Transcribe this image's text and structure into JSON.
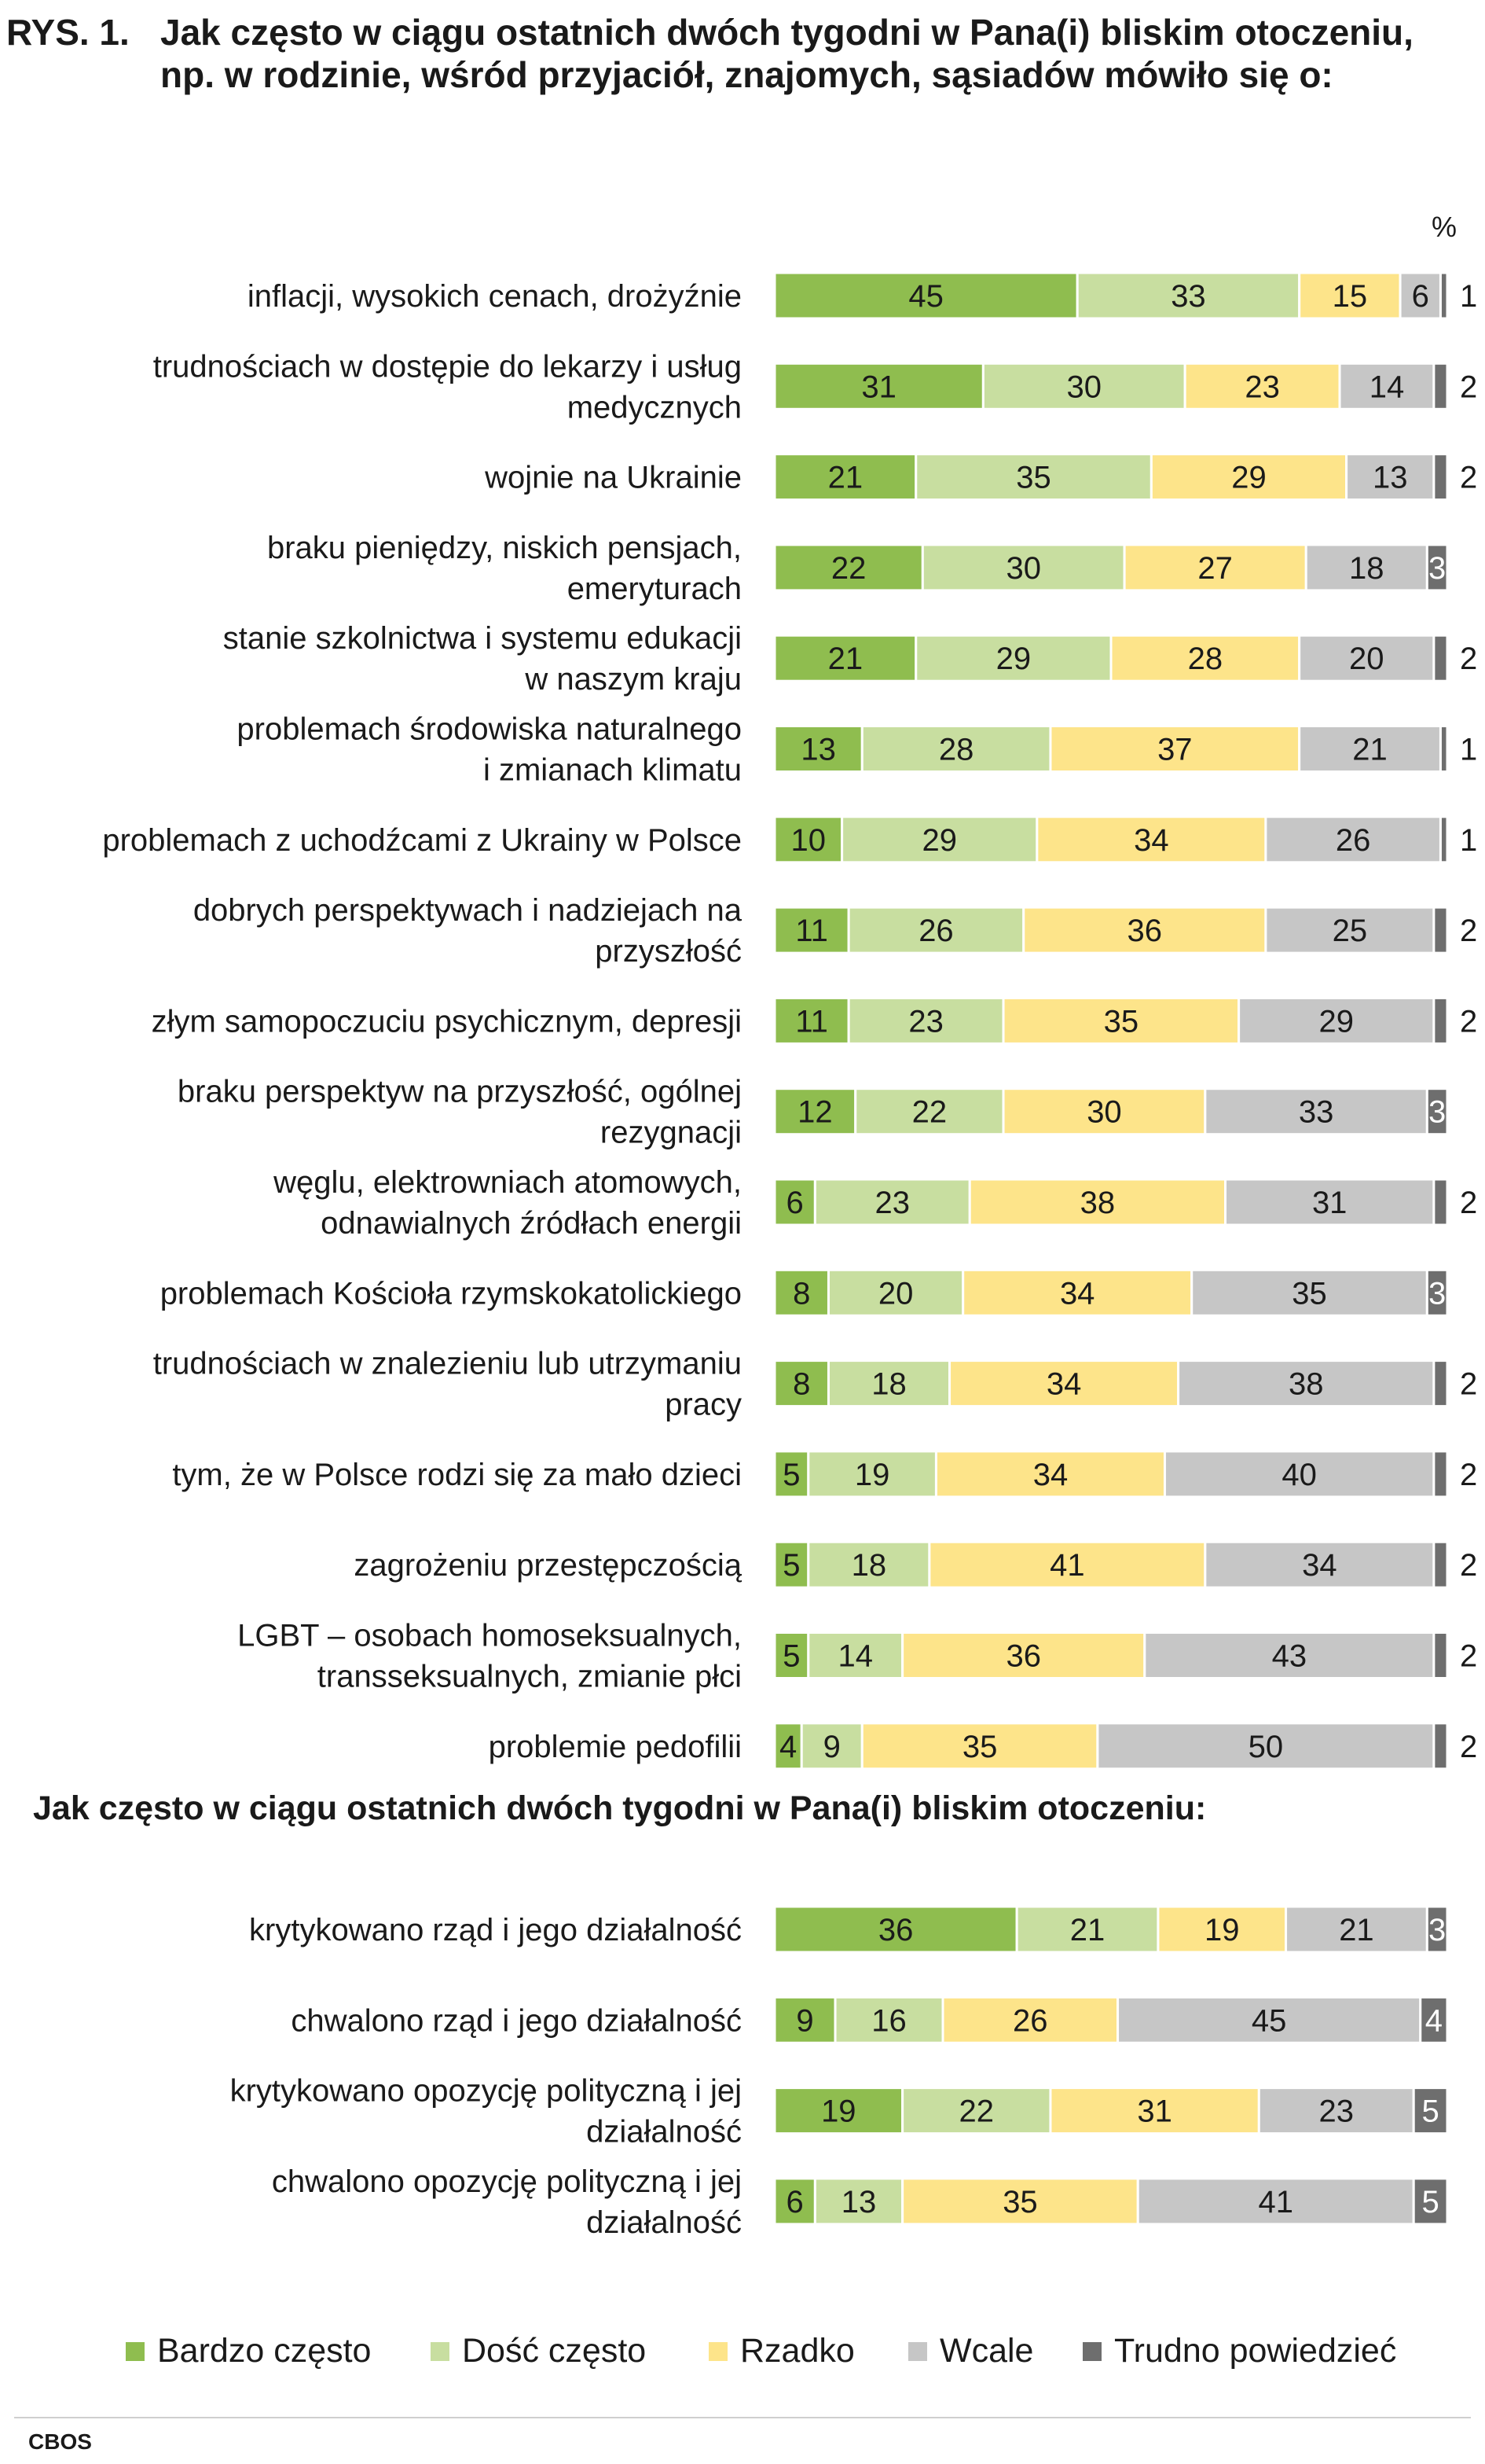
{
  "figure_label": "RYS. 1.",
  "title": "Jak często w ciągu ostatnich dwóch tygodni w Pana(i) bliskim otoczeniu, np. w rodzinie, wśród przyjaciół, znajomych, sąsiadów mówiło się o:",
  "subtitle": "Jak często w ciągu ostatnich dwóch tygodni w Pana(i) bliskim otoczeniu:",
  "unit": "%",
  "source": "CBOS",
  "colors": {
    "bardzo_czesto": "#8fbd4f",
    "dosc_czesto": "#c8dea0",
    "rzadko": "#fde48a",
    "wcale": "#c6c6c6",
    "trudno_powiedziec": "#6e6e6e"
  },
  "chart_data": [
    {
      "type": "bar",
      "orientation": "horizontal",
      "stacked": true,
      "categories": [
        "inflacji, wysokich cenach, drożyźnie",
        "trudnościach w dostępie do lekarzy i usług medycznych",
        "wojnie na Ukrainie",
        "braku pieniędzy, niskich pensjach, emeryturach",
        "stanie szkolnictwa i systemu edukacji w naszym kraju",
        "problemach środowiska naturalnego i zmianach klimatu",
        "problemach z uchodźcami z Ukrainy w Polsce",
        "dobrych perspektywach i nadziejach na przyszłość",
        "złym samopoczuciu psychicznym, depresji",
        "braku perspektyw na przyszłość, ogólnej rezygnacji",
        "węglu, elektrowniach atomowych, odnawialnych źródłach energii",
        "problemach Kościoła rzymskokatolickiego",
        "trudnościach w znalezieniu lub utrzymaniu pracy",
        "tym, że w Polsce rodzi się za mało dzieci",
        "zagrożeniu przestępczością",
        "LGBT – osobach homoseksualnych, transseksualnych, zmianie płci",
        "problemie pedofilii"
      ],
      "label_lines": [
        [
          "inflacji, wysokich cenach, drożyźnie"
        ],
        [
          "trudnościach w dostępie do lekarzy i usług",
          "medycznych"
        ],
        [
          "wojnie na Ukrainie"
        ],
        [
          "braku pieniędzy, niskich pensjach,",
          "emeryturach"
        ],
        [
          "stanie szkolnictwa i systemu edukacji",
          "w naszym kraju"
        ],
        [
          "problemach środowiska naturalnego",
          "i zmianach klimatu"
        ],
        [
          "problemach z uchodźcami z Ukrainy w Polsce"
        ],
        [
          "dobrych perspektywach i nadziejach na",
          "przyszłość"
        ],
        [
          "złym samopoczuciu psychicznym, depresji"
        ],
        [
          "braku perspektyw na przyszłość, ogólnej",
          "rezygnacji"
        ],
        [
          "węglu, elektrowniach atomowych,",
          "odnawialnych źródłach energii"
        ],
        [
          "problemach Kościoła rzymskokatolickiego"
        ],
        [
          "trudnościach w znalezieniu lub utrzymaniu",
          "pracy"
        ],
        [
          "tym, że w Polsce rodzi się za mało dzieci"
        ],
        [
          "zagrożeniu przestępczością"
        ],
        [
          "LGBT – osobach homoseksualnych,",
          "transseksualnych, zmianie płci"
        ],
        [
          "problemie pedofilii"
        ]
      ],
      "series": [
        {
          "name": "Bardzo często",
          "values": [
            45,
            31,
            21,
            22,
            21,
            13,
            10,
            11,
            11,
            12,
            6,
            8,
            8,
            5,
            5,
            5,
            4
          ]
        },
        {
          "name": "Dość często",
          "values": [
            33,
            30,
            35,
            30,
            29,
            28,
            29,
            26,
            23,
            22,
            23,
            20,
            18,
            19,
            18,
            14,
            9
          ]
        },
        {
          "name": "Rzadko",
          "values": [
            15,
            23,
            29,
            27,
            28,
            37,
            34,
            36,
            35,
            30,
            38,
            34,
            34,
            34,
            41,
            36,
            35
          ]
        },
        {
          "name": "Wcale",
          "values": [
            6,
            14,
            13,
            18,
            20,
            21,
            26,
            25,
            29,
            33,
            31,
            35,
            38,
            40,
            34,
            43,
            50
          ]
        },
        {
          "name": "Trudno powiedzieć",
          "values": [
            1,
            2,
            2,
            3,
            2,
            1,
            1,
            2,
            2,
            3,
            2,
            3,
            2,
            2,
            2,
            2,
            2
          ]
        }
      ],
      "xlim": [
        0,
        100
      ]
    },
    {
      "type": "bar",
      "orientation": "horizontal",
      "stacked": true,
      "categories": [
        "krytykowano rząd i jego działalność",
        "chwalono rząd i jego działalność",
        "krytykowano opozycję polityczną i jej działalność",
        "chwalono opozycję polityczną i jej działalność"
      ],
      "label_lines": [
        [
          "krytykowano rząd i jego działalność"
        ],
        [
          "chwalono rząd i jego działalność"
        ],
        [
          "krytykowano opozycję polityczną i jej",
          "działalność"
        ],
        [
          "chwalono opozycję polityczną i jej",
          "działalność"
        ]
      ],
      "series": [
        {
          "name": "Bardzo często",
          "values": [
            36,
            9,
            19,
            6
          ]
        },
        {
          "name": "Dość często",
          "values": [
            21,
            16,
            22,
            13
          ]
        },
        {
          "name": "Rzadko",
          "values": [
            19,
            26,
            31,
            35
          ]
        },
        {
          "name": "Wcale",
          "values": [
            21,
            45,
            23,
            41
          ]
        },
        {
          "name": "Trudno powiedzieć",
          "values": [
            3,
            4,
            5,
            5
          ]
        }
      ],
      "xlim": [
        0,
        100
      ]
    }
  ],
  "legend": [
    {
      "label": "Bardzo często",
      "color": "#8fbd4f"
    },
    {
      "label": "Dość często",
      "color": "#c8dea0"
    },
    {
      "label": "Rzadko",
      "color": "#fde48a"
    },
    {
      "label": "Wcale",
      "color": "#c6c6c6"
    },
    {
      "label": "Trudno powiedzieć",
      "color": "#6e6e6e"
    }
  ]
}
